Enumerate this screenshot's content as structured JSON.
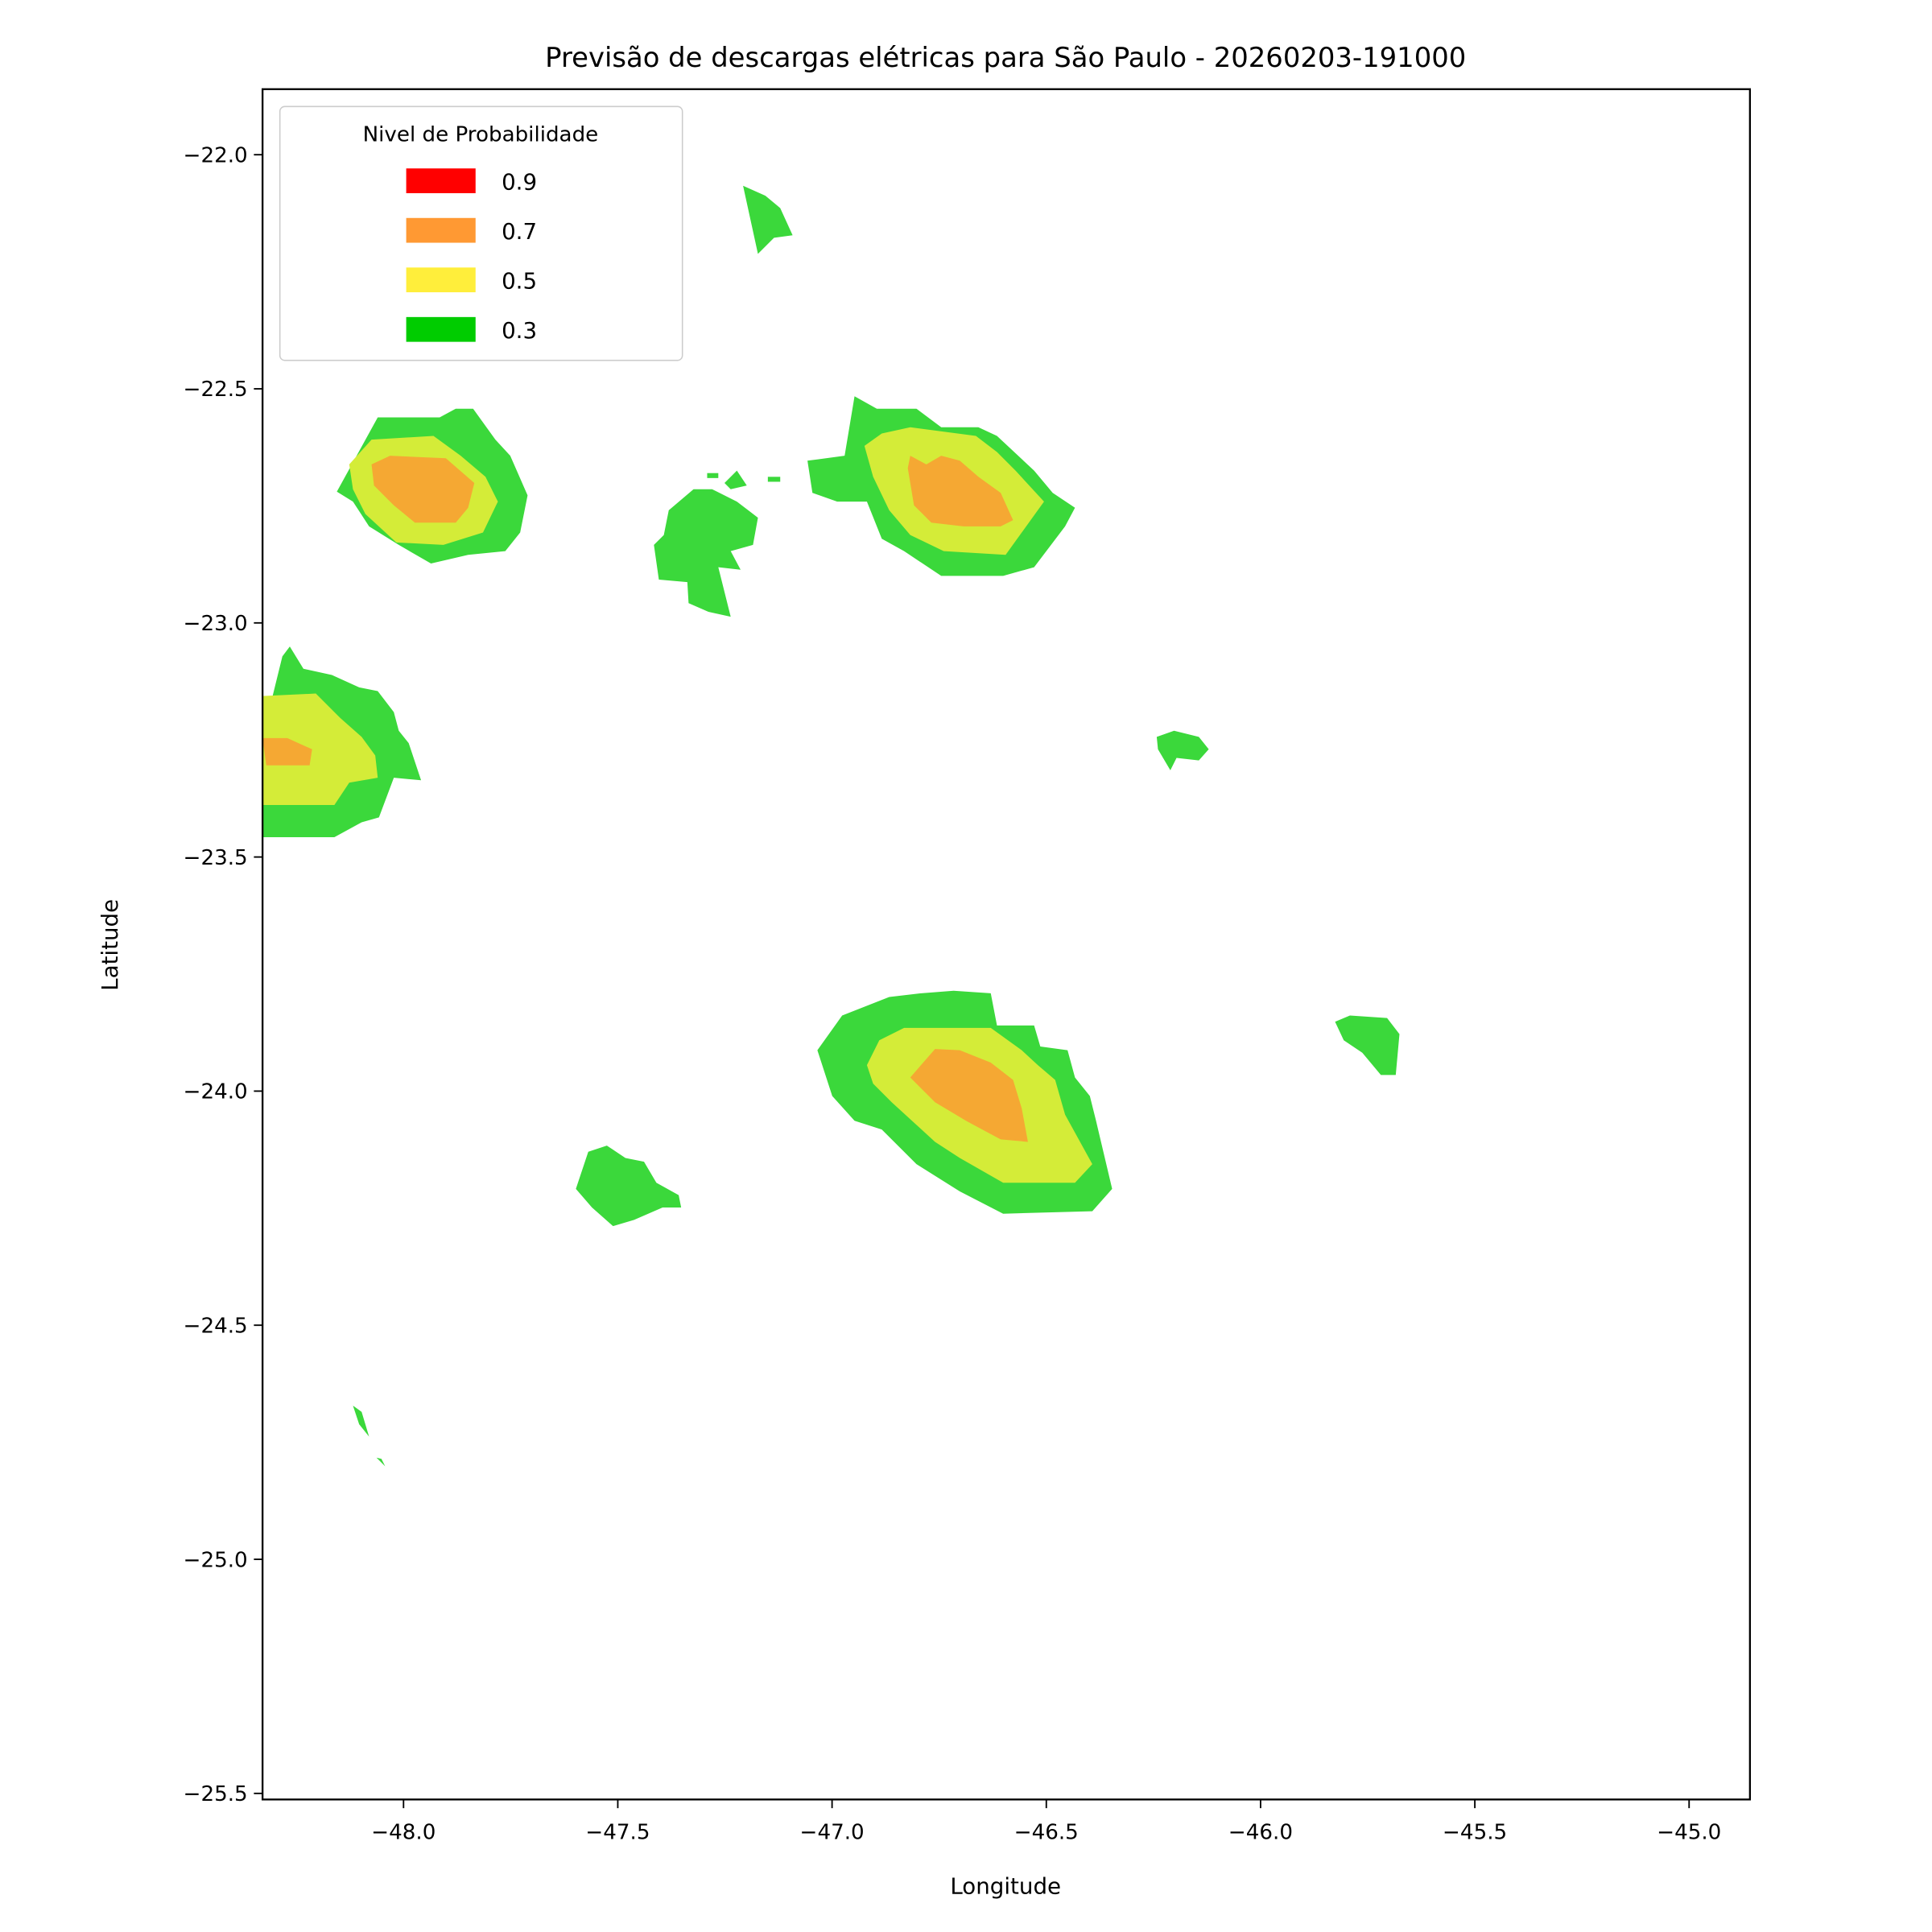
{
  "chart_data": {
    "type": "contour",
    "title": "Previsão de descargas elétricas para São Paulo - 20260203-191000",
    "x_label": "Longitude",
    "y_label": "Latitude",
    "legend_title": "Nivel de Probabilidade",
    "legend_position": "upper left",
    "series": [
      {
        "name": "0.9",
        "color": "#ff0000",
        "fill": "#ff0000"
      },
      {
        "name": "0.7",
        "color": "#ff9933",
        "fill": "#f5a833"
      },
      {
        "name": "0.5",
        "color": "#ffee3b",
        "fill": "#d4ec38"
      },
      {
        "name": "0.3",
        "color": "#00cc00",
        "fill": "#3bd83b"
      }
    ],
    "xlim": [
      -48.329,
      -44.858
    ],
    "ylim": [
      -25.513,
      -21.86
    ],
    "xticks": [
      {
        "value": -48,
        "label": "−48.0"
      },
      {
        "value": -47.5,
        "label": "−47.5"
      },
      {
        "value": -47,
        "label": "−47.0"
      },
      {
        "value": -46.5,
        "label": "−46.5"
      },
      {
        "value": -46,
        "label": "−46.0"
      },
      {
        "value": -45.5,
        "label": "−45.5"
      },
      {
        "value": -45,
        "label": "−45.0"
      }
    ],
    "yticks": [
      {
        "value": -22,
        "label": "−22.0"
      },
      {
        "value": -22.5,
        "label": "−22.5"
      },
      {
        "value": -23,
        "label": "−23.0"
      },
      {
        "value": -23.5,
        "label": "−23.5"
      },
      {
        "value": -24,
        "label": "−24.0"
      },
      {
        "value": -24.5,
        "label": "−24.5"
      },
      {
        "value": -25,
        "label": "−25.0"
      },
      {
        "value": -25.5,
        "label": "−25.5"
      }
    ]
  }
}
